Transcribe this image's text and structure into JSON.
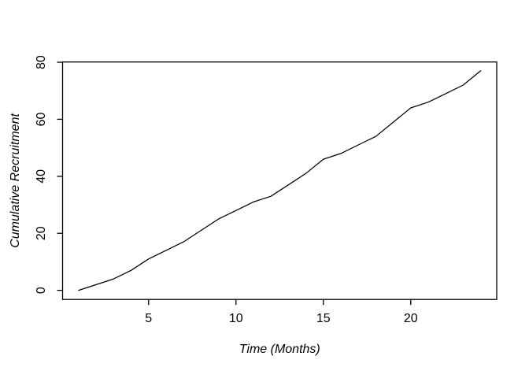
{
  "figure": {
    "background": "#ffffff",
    "line_color": "#000000",
    "text_color": "#000000"
  },
  "chart_data": {
    "type": "line",
    "title": "",
    "xlabel": "Time (Months)",
    "ylabel": "Cumulative Recruitment",
    "x": [
      1,
      2,
      3,
      4,
      5,
      6,
      7,
      8,
      9,
      10,
      11,
      12,
      13,
      14,
      15,
      16,
      17,
      18,
      19,
      20,
      21,
      22,
      23,
      24
    ],
    "y": [
      0,
      2,
      4,
      7,
      11,
      14,
      17,
      21,
      25,
      28,
      31,
      33,
      37,
      41,
      46,
      48,
      51,
      54,
      59,
      64,
      66,
      69,
      72,
      77
    ],
    "series_name": "cumulative-recruitment",
    "xticks": [
      5,
      10,
      15,
      20
    ],
    "yticks": [
      0,
      20,
      40,
      60,
      80
    ],
    "xtick_labels": [
      "5",
      "10",
      "15",
      "20"
    ],
    "ytick_labels": [
      "0",
      "20",
      "40",
      "60",
      "80"
    ],
    "xlim": [
      0.08,
      24.92
    ],
    "ylim": [
      -3.2,
      80.1
    ],
    "grid": false,
    "legend": null,
    "frame_box": true
  }
}
